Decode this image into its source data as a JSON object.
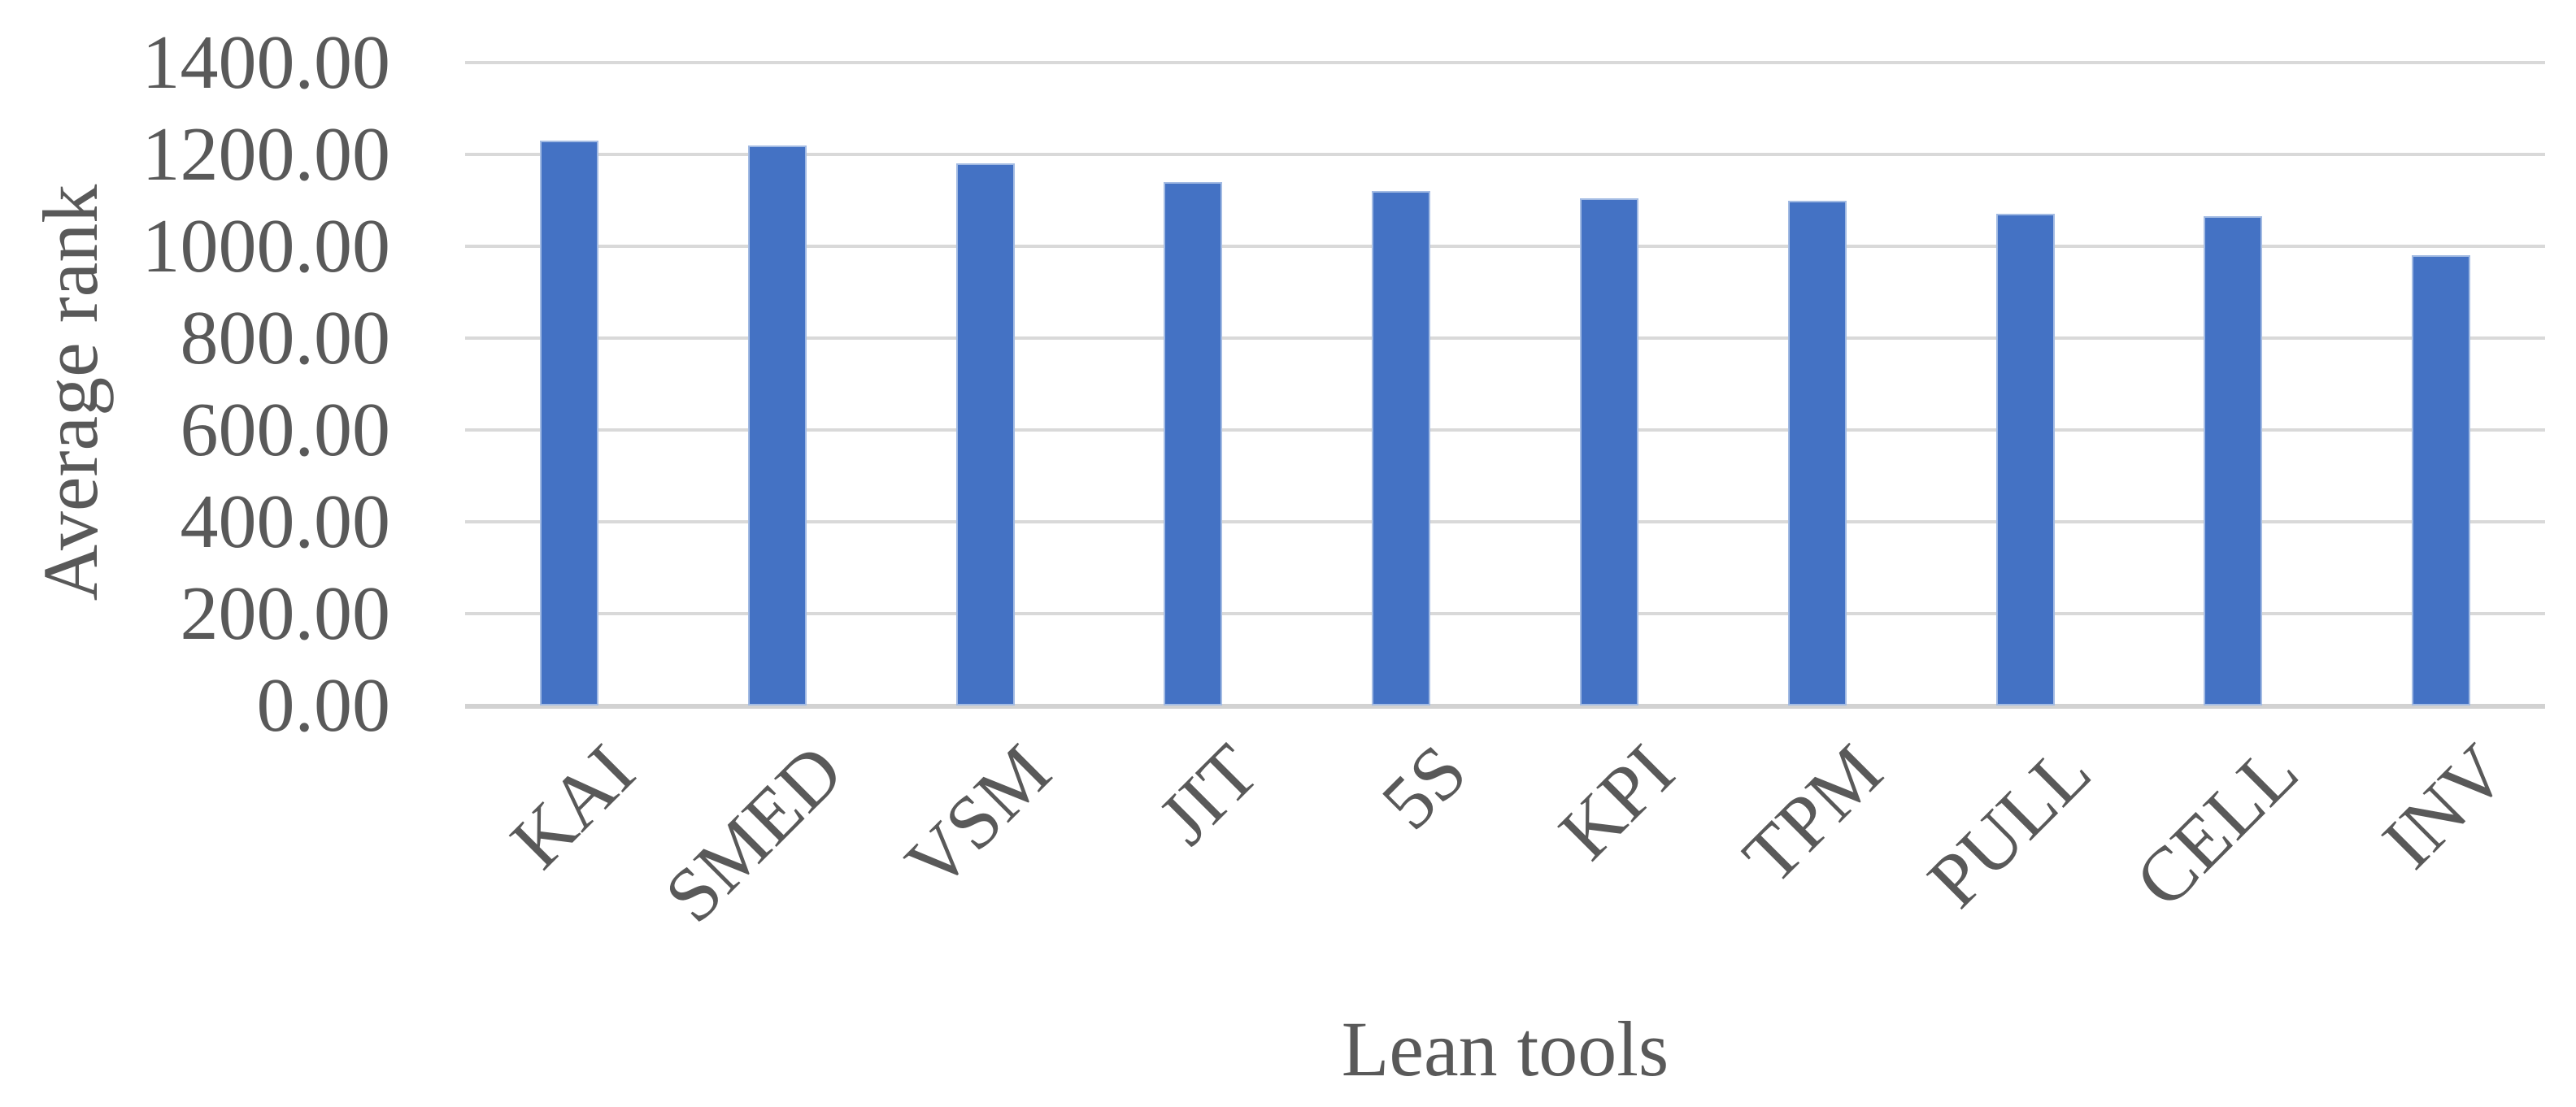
{
  "chart_data": {
    "type": "bar",
    "xlabel": "Lean tools",
    "ylabel": "Average rank",
    "categories": [
      "KAI",
      "SMED",
      "VSM",
      "JIT",
      "5S",
      "KPI",
      "TPM",
      "PULL",
      "CELL",
      "INV"
    ],
    "values": [
      1230,
      1220,
      1180,
      1140,
      1120,
      1105,
      1100,
      1070,
      1065,
      980
    ],
    "ylim": [
      0,
      1400
    ],
    "ytick_step": 200,
    "ytick_labels": [
      "0.00",
      "200.00",
      "400.00",
      "600.00",
      "800.00",
      "1000.00",
      "1200.00",
      "1400.00"
    ],
    "grid": "horizontal",
    "legend": false,
    "bar_color": "#4472C4",
    "bar_border_color": "#A3BBE3",
    "gridline_color": "#D9D9D9",
    "axis_line_color": "#D2D2D2",
    "text_color": "#595959"
  }
}
